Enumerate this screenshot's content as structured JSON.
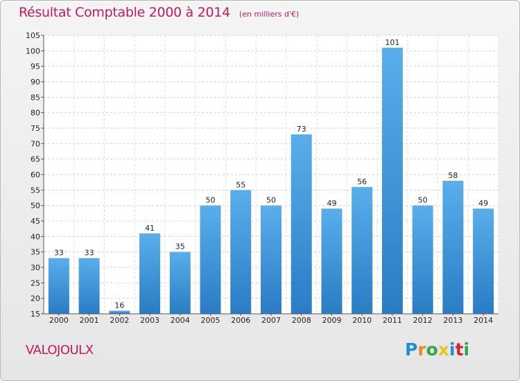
{
  "chart_data": {
    "type": "bar",
    "title": "Résultat Comptable 2000 à 2014",
    "subtitle": "(en milliers d'€)",
    "categories": [
      "2000",
      "2001",
      "2002",
      "2003",
      "2004",
      "2005",
      "2006",
      "2007",
      "2008",
      "2009",
      "2010",
      "2011",
      "2012",
      "2013",
      "2014"
    ],
    "values": [
      33,
      33,
      16,
      41,
      35,
      50,
      55,
      50,
      73,
      49,
      56,
      101,
      50,
      58,
      49
    ],
    "ylim": [
      15,
      105
    ],
    "yticks": [
      15,
      20,
      25,
      30,
      35,
      40,
      45,
      50,
      55,
      60,
      65,
      70,
      75,
      80,
      85,
      90,
      95,
      100,
      105
    ],
    "xlabel": "",
    "ylabel": "",
    "grid": true,
    "bar_color": "#3a8fd8"
  },
  "commune": "VALOJOULX",
  "logo": {
    "letters": [
      "P",
      "r",
      "o",
      "x",
      "i",
      "t",
      "i"
    ]
  }
}
